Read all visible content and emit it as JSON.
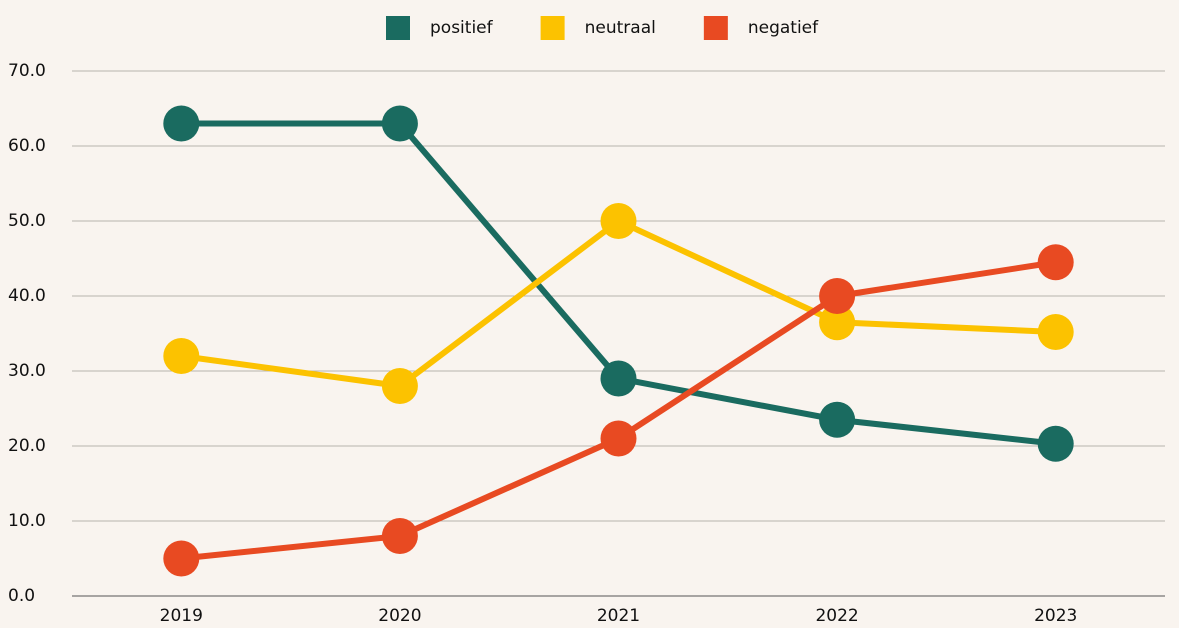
{
  "chart_data": {
    "type": "line",
    "categories": [
      "2019",
      "2020",
      "2021",
      "2022",
      "2023"
    ],
    "series": [
      {
        "name": "positief",
        "color": "#1a6b60",
        "values": [
          63,
          63,
          29,
          23.5,
          20.3
        ]
      },
      {
        "name": "neutraal",
        "color": "#fcc200",
        "values": [
          32,
          28,
          50,
          36.5,
          35.2
        ]
      },
      {
        "name": "negatief",
        "color": "#e84a22",
        "values": [
          5,
          8,
          21,
          40,
          44.5
        ]
      }
    ],
    "ylim": [
      0,
      70
    ],
    "yticks": [
      {
        "value": 0,
        "label": "0.0"
      },
      {
        "value": 10,
        "label": "10.0"
      },
      {
        "value": 20,
        "label": "20.0"
      },
      {
        "value": 30,
        "label": "30.0"
      },
      {
        "value": 40,
        "label": "40.0"
      },
      {
        "value": 50,
        "label": "50.0"
      },
      {
        "value": 60,
        "label": "60.0"
      },
      {
        "value": 70,
        "label": "70.0"
      }
    ],
    "grid": true,
    "legend": "top"
  }
}
